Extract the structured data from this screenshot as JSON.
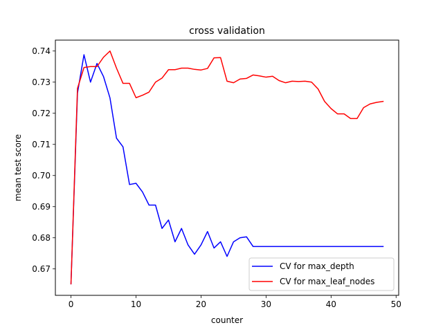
{
  "chart_data": {
    "type": "line",
    "title": "cross validation",
    "xlabel": "counter",
    "ylabel": "mean test score",
    "xlim": [
      -2.4,
      50.4
    ],
    "ylim": [
      0.6615,
      0.7435
    ],
    "xticks": [
      0,
      10,
      20,
      30,
      40,
      50
    ],
    "yticks": [
      0.67,
      0.68,
      0.69,
      0.7,
      0.71,
      0.72,
      0.73,
      0.74
    ],
    "ytick_labels": [
      "0.67",
      "0.68",
      "0.69",
      "0.70",
      "0.71",
      "0.72",
      "0.73",
      "0.74"
    ],
    "grid": false,
    "legend_position": "lower-right",
    "x": [
      0,
      1,
      2,
      3,
      4,
      5,
      6,
      7,
      8,
      9,
      10,
      11,
      12,
      13,
      14,
      15,
      16,
      17,
      18,
      19,
      20,
      21,
      22,
      23,
      24,
      25,
      26,
      27,
      28,
      29,
      30,
      31,
      32,
      33,
      34,
      35,
      36,
      37,
      38,
      39,
      40,
      41,
      42,
      43,
      44,
      45,
      46,
      47,
      48
    ],
    "series": [
      {
        "name": "CV for max_depth",
        "color": "#0000ff",
        "values": [
          0.6652,
          0.7265,
          0.7388,
          0.73,
          0.736,
          0.7318,
          0.7249,
          0.712,
          0.7092,
          0.6971,
          0.6975,
          0.6947,
          0.6905,
          0.6905,
          0.683,
          0.6857,
          0.6787,
          0.683,
          0.6777,
          0.6747,
          0.6777,
          0.682,
          0.6767,
          0.6787,
          0.674,
          0.6787,
          0.68,
          0.6803,
          0.6772,
          0.6772,
          0.6772,
          0.6772,
          0.6772,
          0.6772,
          0.6772,
          0.6772,
          0.6772,
          0.6772,
          0.6772,
          0.6772,
          0.6772,
          0.6772,
          0.6772,
          0.6772,
          0.6772,
          0.6772,
          0.6772,
          0.6772,
          0.6772
        ]
      },
      {
        "name": "CV for max_leaf_nodes",
        "color": "#ff0000",
        "values": [
          0.6652,
          0.728,
          0.7347,
          0.735,
          0.735,
          0.738,
          0.74,
          0.7345,
          0.7296,
          0.7296,
          0.725,
          0.7258,
          0.7268,
          0.73,
          0.7313,
          0.734,
          0.734,
          0.7345,
          0.7345,
          0.7341,
          0.7339,
          0.7344,
          0.7378,
          0.7379,
          0.7303,
          0.7298,
          0.731,
          0.7312,
          0.7323,
          0.732,
          0.7316,
          0.7319,
          0.7305,
          0.7298,
          0.7303,
          0.7302,
          0.7303,
          0.73,
          0.7278,
          0.7238,
          0.7215,
          0.7198,
          0.7198,
          0.7183,
          0.7183,
          0.7218,
          0.723,
          0.7235,
          0.7238
        ]
      }
    ]
  }
}
